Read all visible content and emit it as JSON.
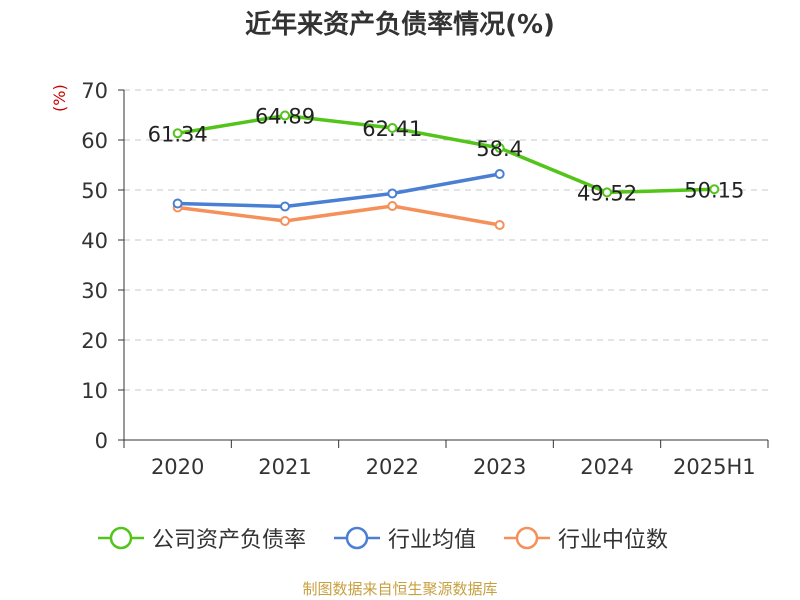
{
  "chart_data": {
    "type": "line",
    "title": "近年来资产负债率情况(%)",
    "ylabel": "(%)",
    "categories": [
      "2020",
      "2021",
      "2022",
      "2023",
      "2024",
      "2025H1"
    ],
    "ylim": [
      0,
      70
    ],
    "yticks": [
      "0",
      "10",
      "20",
      "30",
      "40",
      "50",
      "60",
      "70"
    ],
    "grid": true,
    "legend_position": "bottom",
    "series": [
      {
        "name": "公司资产负债率",
        "color": "#52c41a",
        "values": [
          61.34,
          64.89,
          62.41,
          58.4,
          49.52,
          50.15
        ],
        "labels": [
          "61.34",
          "64.89",
          "62.41",
          "58.4",
          "49.52",
          "50.15"
        ]
      },
      {
        "name": "行业均值",
        "color": "#4a7fd4",
        "values": [
          47.3,
          46.7,
          49.3,
          53.2,
          null,
          null
        ]
      },
      {
        "name": "行业中位数",
        "color": "#f5905a",
        "values": [
          46.5,
          43.8,
          46.8,
          43.0,
          null,
          null
        ]
      }
    ],
    "source": "制图数据来自恒生聚源数据库"
  }
}
